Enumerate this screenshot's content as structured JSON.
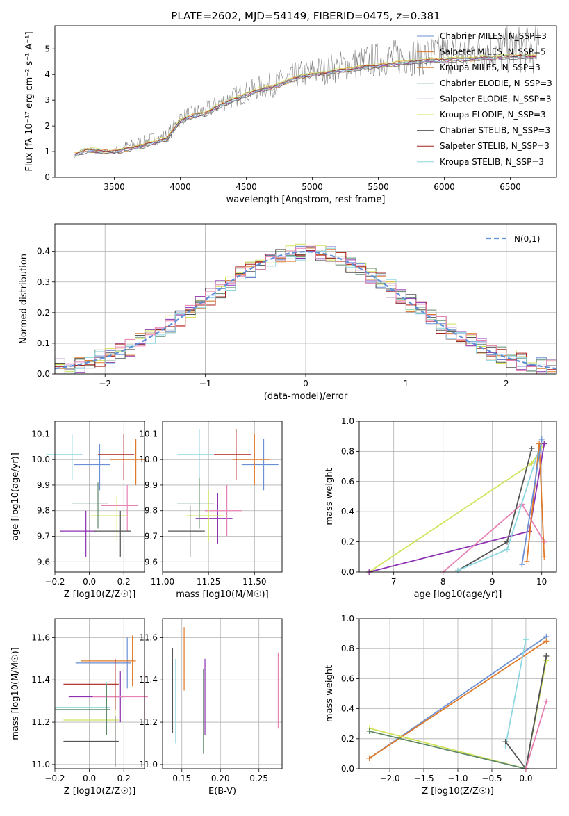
{
  "chart_data": [
    {
      "type": "line",
      "panel": "spectrum",
      "title": "PLATE=2602, MJD=54149, FIBERID=0475, z=0.381",
      "xlabel": "wavelength [Angstrom, rest frame]",
      "ylabel": "Flux [fλ 10⁻¹⁷ erg cm⁻² s⁻¹ A⁻¹]",
      "xlim": [
        3050,
        6850
      ],
      "ylim": [
        0,
        5.9
      ],
      "xticks": [
        "3500",
        "4000",
        "4500",
        "5000",
        "5500",
        "6000",
        "6500"
      ],
      "yticks": [
        "0",
        "1",
        "2",
        "3",
        "4",
        "5"
      ],
      "data_trace": {
        "color": "#808080",
        "x": [
          3200,
          3250,
          3300,
          3400,
          3450,
          3500,
          3550,
          3600,
          3700,
          3800,
          3900,
          4000,
          4100,
          4200,
          4300,
          4400,
          4500,
          4600,
          4700,
          4800,
          4900,
          5000,
          5100,
          5200,
          5300,
          5400,
          5500,
          5600,
          5700,
          5800,
          5900,
          6000,
          6100,
          6200,
          6300,
          6400,
          6500,
          6600,
          6700
        ],
        "y": [
          0.8,
          1.05,
          1.1,
          1.0,
          1.05,
          1.0,
          1.1,
          1.2,
          1.35,
          1.5,
          1.6,
          2.3,
          2.5,
          2.6,
          2.9,
          3.1,
          3.3,
          3.5,
          3.6,
          3.8,
          4.0,
          4.1,
          4.2,
          4.3,
          4.4,
          4.5,
          4.6,
          4.65,
          4.7,
          4.7,
          4.75,
          4.8,
          4.8,
          4.85,
          4.9,
          4.9,
          4.95,
          5.0,
          5.0
        ]
      },
      "series": [
        {
          "name": "Chabrier MILES, N_SSP=3",
          "color": "#6a8fd4",
          "offset": 0.0
        },
        {
          "name": "Salpeter MILES, N_SSP=5",
          "color": "#e07a2a",
          "offset": 0.05
        },
        {
          "name": "Kroupa MILES, N_SSP=3",
          "color": "#d4822f",
          "offset": -0.05
        },
        {
          "name": "Chabrier ELODIE, N_SSP=3",
          "color": "#5e8a6a",
          "offset": 0.03
        },
        {
          "name": "Salpeter ELODIE, N_SSP=3",
          "color": "#8b30b0",
          "offset": -0.03
        },
        {
          "name": "Kroupa ELODIE, N_SSP=3",
          "color": "#d2e35a",
          "offset": 0.08
        },
        {
          "name": "Chabrier STELIB, N_SSP=3",
          "color": "#555555",
          "offset": -0.08
        },
        {
          "name": "Salpeter STELIB, N_SSP=3",
          "color": "#a8201a",
          "offset": 0.02
        },
        {
          "name": "Kroupa STELIB, N_SSP=3",
          "color": "#8ed6e0",
          "offset": -0.02
        }
      ],
      "model_curve": {
        "x": [
          3200,
          3300,
          3400,
          3500,
          3600,
          3700,
          3800,
          3900,
          4000,
          4100,
          4200,
          4300,
          4400,
          4500,
          4600,
          4700,
          4800,
          4900,
          5000,
          5100,
          5200,
          5300,
          5400,
          5500,
          5600,
          5700,
          5800,
          5900,
          6000,
          6100,
          6200,
          6300,
          6400,
          6500,
          6600,
          6700
        ],
        "y": [
          0.9,
          1.05,
          1.0,
          1.0,
          1.1,
          1.2,
          1.35,
          1.5,
          2.2,
          2.4,
          2.5,
          2.8,
          3.0,
          3.2,
          3.4,
          3.5,
          3.7,
          3.9,
          4.0,
          4.05,
          4.15,
          4.2,
          4.3,
          4.35,
          4.4,
          4.45,
          4.5,
          4.55,
          4.55,
          4.6,
          4.6,
          4.65,
          4.65,
          4.7,
          4.7,
          4.7
        ]
      }
    },
    {
      "type": "step",
      "panel": "residuals",
      "xlabel": "(data-model)/error",
      "ylabel": "Normed distribution",
      "xlim": [
        -2.5,
        2.5
      ],
      "ylim": [
        0,
        0.49
      ],
      "xticks": [
        "−2",
        "−1",
        "0",
        "1",
        "2"
      ],
      "yticks": [
        "0.0",
        "0.1",
        "0.2",
        "0.3",
        "0.4"
      ],
      "gaussian_label": "N(0,1)",
      "gaussian_color": "#5b8fd9",
      "hist_colors": [
        "#6a8fd4",
        "#e07a2a",
        "#5e8a6a",
        "#8b30b0",
        "#d2e35a",
        "#555555",
        "#a8201a",
        "#8ed6e0",
        "#e882b4"
      ]
    },
    {
      "type": "scatter",
      "panel": "age-vs-Z",
      "xlabel": "Z [log10(Z/Z☉)]",
      "ylabel": "age  [log10(age/yr)]",
      "xlim": [
        -0.2,
        0.32
      ],
      "ylim": [
        9.56,
        10.15
      ],
      "xticks": [
        "−0.2",
        "0.0",
        "0.2"
      ],
      "yticks": [
        "9.6",
        "9.7",
        "9.8",
        "9.9",
        "10.0",
        "10.1"
      ]
    },
    {
      "type": "scatter",
      "panel": "age-vs-mass",
      "xlabel": "mass [log10(M/M☉)]",
      "xlim": [
        11.0,
        11.65
      ],
      "ylim": [
        9.56,
        10.15
      ],
      "xticks": [
        "11.00",
        "11.25",
        "11.50"
      ],
      "yticks": [
        "9.6",
        "9.7",
        "9.8",
        "9.9",
        "10.0",
        "10.1"
      ]
    },
    {
      "type": "line",
      "panel": "mass-weight-vs-age",
      "xlabel": "age  [log10(age/yr)]",
      "ylabel": "mass weight",
      "xlim": [
        6.3,
        10.3
      ],
      "ylim": [
        0,
        1.0
      ],
      "xticks": [
        "7",
        "8",
        "9",
        "10"
      ],
      "yticks": [
        "0.0",
        "0.2",
        "0.4",
        "0.6",
        "0.8",
        "1.0"
      ]
    },
    {
      "type": "scatter",
      "panel": "mass-vs-Z",
      "xlabel": "Z [log10(Z/Z☉)]",
      "ylabel": "mass [log10(M/M☉)]",
      "xlim": [
        -0.2,
        0.32
      ],
      "ylim": [
        10.98,
        11.69
      ],
      "xticks": [
        "−0.2",
        "0.0",
        "0.2"
      ],
      "yticks": [
        "11.0",
        "11.2",
        "11.4",
        "11.6"
      ]
    },
    {
      "type": "scatter",
      "panel": "mass-vs-EBV",
      "xlabel": "E(B-V)",
      "xlim": [
        0.125,
        0.28
      ],
      "ylim": [
        10.98,
        11.69
      ],
      "xticks": [
        "0.15",
        "0.20",
        "0.25"
      ],
      "yticks": [
        "11.0",
        "11.2",
        "11.4",
        "11.6"
      ]
    },
    {
      "type": "line",
      "panel": "mass-weight-vs-Z",
      "xlabel": "Z [log10(Z/Z☉)]",
      "ylabel": "mass weight",
      "xlim": [
        -2.45,
        0.45
      ],
      "ylim": [
        0,
        1.0
      ],
      "xticks": [
        "−2.0",
        "−1.5",
        "−1.0",
        "−0.5",
        "0.0"
      ],
      "yticks": [
        "0.0",
        "0.2",
        "0.4",
        "0.6",
        "0.8",
        "1.0"
      ]
    }
  ]
}
